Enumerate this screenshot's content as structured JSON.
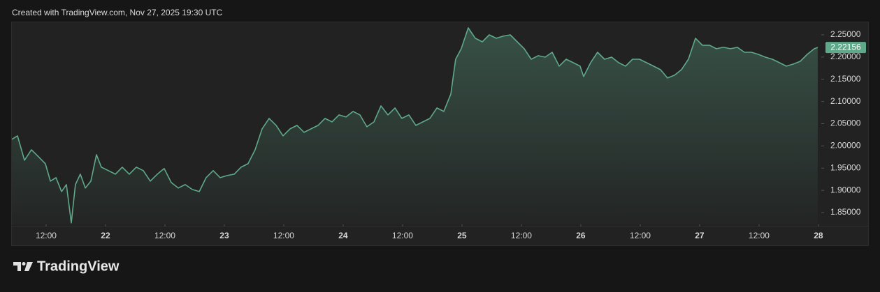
{
  "header": "Created with TradingView.com, Nov 27, 2025 19:30 UTC",
  "footer": {
    "brand": "TradingView"
  },
  "chart_data": {
    "type": "area",
    "x": [
      21.212,
      21.259,
      21.318,
      21.377,
      21.436,
      21.494,
      21.536,
      21.583,
      21.63,
      21.671,
      21.712,
      21.747,
      21.788,
      21.83,
      21.877,
      21.924,
      21.965,
      22.024,
      22.083,
      22.141,
      22.2,
      22.259,
      22.318,
      22.377,
      22.436,
      22.494,
      22.553,
      22.612,
      22.671,
      22.73,
      22.789,
      22.847,
      22.906,
      22.965,
      23.024,
      23.083,
      23.141,
      23.2,
      23.259,
      23.318,
      23.377,
      23.436,
      23.494,
      23.553,
      23.612,
      23.671,
      23.73,
      23.789,
      23.847,
      23.906,
      23.965,
      24.024,
      24.083,
      24.141,
      24.2,
      24.259,
      24.318,
      24.377,
      24.436,
      24.494,
      24.553,
      24.612,
      24.671,
      24.73,
      24.789,
      24.847,
      24.906,
      24.947,
      24.994,
      25.053,
      25.112,
      25.171,
      25.23,
      25.288,
      25.347,
      25.406,
      25.465,
      25.524,
      25.583,
      25.641,
      25.7,
      25.759,
      25.818,
      25.877,
      25.936,
      25.994,
      26.024,
      26.083,
      26.141,
      26.2,
      26.259,
      26.318,
      26.377,
      26.436,
      26.494,
      26.553,
      26.612,
      26.671,
      26.73,
      26.789,
      26.847,
      26.906,
      26.965,
      27.024,
      27.083,
      27.141,
      27.2,
      27.259,
      27.318,
      27.377,
      27.436,
      27.494,
      27.553,
      27.612,
      27.671,
      27.73,
      27.789,
      27.847,
      27.906,
      27.965,
      27.994
    ],
    "series": [
      {
        "color": "#5fa98b",
        "values": [
          2.0149,
          2.0227,
          1.9679,
          1.9914,
          1.9757,
          1.96,
          1.9208,
          1.9287,
          1.8973,
          1.913,
          1.8268,
          1.913,
          1.9365,
          1.9052,
          1.9208,
          1.9804,
          1.9522,
          1.9444,
          1.9365,
          1.9522,
          1.9365,
          1.9522,
          1.9444,
          1.9208,
          1.9365,
          1.9491,
          1.9177,
          1.9052,
          1.913,
          1.902,
          1.8973,
          1.9287,
          1.9444,
          1.9287,
          1.9334,
          1.9365,
          1.9522,
          1.96,
          1.9914,
          2.0384,
          2.0619,
          2.0462,
          2.0227,
          2.0384,
          2.0462,
          2.0306,
          2.0384,
          2.0462,
          2.0619,
          2.0541,
          2.0697,
          2.065,
          2.0776,
          2.0697,
          2.0431,
          2.0541,
          2.0901,
          2.0697,
          2.0854,
          2.0619,
          2.0697,
          2.0462,
          2.0541,
          2.0619,
          2.0854,
          2.0776,
          2.1168,
          2.1951,
          2.2187,
          2.2657,
          2.2422,
          2.2343,
          2.25,
          2.2422,
          2.2469,
          2.25,
          2.2343,
          2.2187,
          2.1951,
          2.203,
          2.1998,
          2.2108,
          2.1795,
          2.1951,
          2.1873,
          2.1795,
          2.156,
          2.1873,
          2.2108,
          2.1951,
          2.1998,
          2.1873,
          2.1795,
          2.1951,
          2.1951,
          2.1873,
          2.1795,
          2.1716,
          2.1528,
          2.1591,
          2.1716,
          2.1951,
          2.2422,
          2.2265,
          2.2265,
          2.2187,
          2.2218,
          2.2187,
          2.2218,
          2.2108,
          2.2108,
          2.2061,
          2.1998,
          2.1951,
          2.1873,
          2.1795,
          2.1842,
          2.1904,
          2.2061,
          2.2187,
          2.22156
        ]
      }
    ],
    "xlim": [
      21.212,
      28.024
    ],
    "ylim": [
      1.8234,
      2.2766
    ],
    "xticks": [
      {
        "value": 21.5,
        "label": "12:00"
      },
      22,
      {
        "value": 22.5,
        "label": "12:00"
      },
      23,
      {
        "value": 23.5,
        "label": "12:00"
      },
      24,
      {
        "value": 24.5,
        "label": "12:00"
      },
      25,
      {
        "value": 25.5,
        "label": "12:00"
      },
      26,
      {
        "value": 26.5,
        "label": "12:00"
      },
      27,
      {
        "value": 27.5,
        "label": "12:00"
      },
      28
    ],
    "yticks": [
      {
        "value": 1.85,
        "label": "1.85000"
      },
      {
        "value": 1.9,
        "label": "1.90000"
      },
      {
        "value": 1.95,
        "label": "1.95000"
      },
      {
        "value": 2.0,
        "label": "2.00000"
      },
      {
        "value": 2.05,
        "label": "2.05000"
      },
      {
        "value": 2.1,
        "label": "2.10000"
      },
      {
        "value": 2.15,
        "label": "2.15000"
      },
      {
        "value": 2.2,
        "label": "2.20000"
      },
      {
        "value": 2.25,
        "label": "2.25000"
      }
    ],
    "grid": false
  }
}
